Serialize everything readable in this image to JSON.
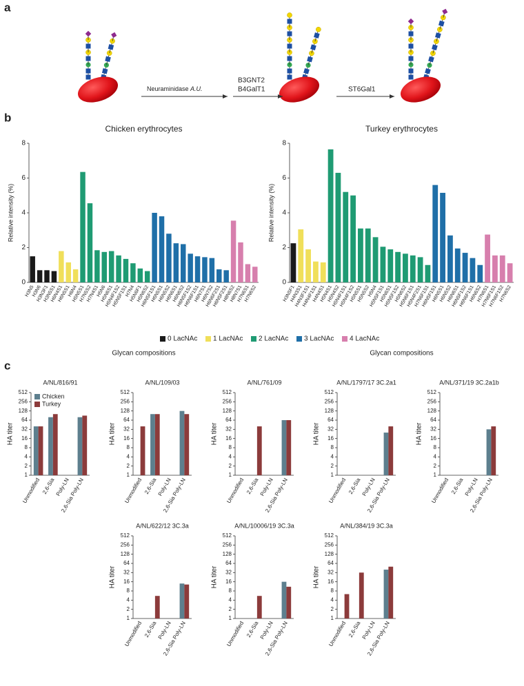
{
  "panel_labels": [
    "a",
    "b",
    "c"
  ],
  "diagram": {
    "steps": [
      {
        "text": "Neuraminidase",
        "italic": "A.U."
      },
      {
        "lines": [
          "B3GNT2",
          "B4GalT1"
        ]
      },
      {
        "lines": [
          "ST6Gal1"
        ]
      }
    ]
  },
  "lacnac_legend": [
    {
      "name": "0 LacNAc",
      "color": "#1a1a1a"
    },
    {
      "name": "1 LacNAc",
      "color": "#f0df5a"
    },
    {
      "name": "2 LacNAc",
      "color": "#1f9b73"
    },
    {
      "name": "3 LacNAc",
      "color": "#1f6fa8"
    },
    {
      "name": "4 LacNAc",
      "color": "#d77fad"
    }
  ],
  "chart_data": [
    {
      "type": "bar",
      "title": "Chicken erythrocytes",
      "y_label": "Relative intensity (%)",
      "x_label": "Glycan compositions",
      "ylim": [
        0,
        8
      ],
      "yticks": [
        0,
        2,
        4,
        6,
        8
      ],
      "series": [
        {
          "categories": [
            "H3N5",
            "H3N6",
            "H3N3F1",
            "H3N5S1"
          ],
          "values": [
            1.5,
            0.7,
            0.7,
            0.65
          ]
        },
        {
          "categories": [
            "H6N4S1",
            "H6N5S1",
            "H6N4"
          ],
          "values": [
            1.8,
            1.15,
            0.75
          ]
        },
        {
          "categories": [
            "H5N5S1",
            "H7N5S2",
            "H7N4S1",
            "H5N6",
            "H5N6S1",
            "H5N4F1S2",
            "H5N5F1S1",
            "H7N4",
            "H5N6F1",
            "H5N6S2"
          ],
          "values": [
            6.35,
            4.55,
            1.85,
            1.75,
            1.8,
            1.55,
            1.35,
            1.1,
            0.8,
            0.65
          ]
        },
        {
          "categories": [
            "H6N5F1S1",
            "H6N5S1",
            "H6N5S2",
            "H6N6S1",
            "H6N6S2",
            "H6N5F1S2",
            "H6N6F1S1",
            "H6N7S1",
            "H6N7S2",
            "H6N6F2S1",
            "H6N5F2S1"
          ],
          "values": [
            4.0,
            3.8,
            2.8,
            2.25,
            2.2,
            1.65,
            1.5,
            1.45,
            1.4,
            0.75,
            0.7
          ]
        },
        {
          "categories": [
            "H8N6S2",
            "H8N7S1",
            "H7N6S1",
            "H7N6S2"
          ],
          "values": [
            3.55,
            2.3,
            1.05,
            0.9
          ]
        }
      ]
    },
    {
      "type": "bar",
      "title": "Turkey erythrocytes",
      "y_label": "Relative intensity (%)",
      "x_label": "Glycan compositions",
      "ylim": [
        0,
        8
      ],
      "yticks": [
        0,
        2,
        4,
        6,
        8
      ],
      "series": [
        {
          "categories": [
            "H3N5F1"
          ],
          "values": [
            2.25
          ]
        },
        {
          "categories": [
            "H4N3S1",
            "H4N3F1S1",
            "H4N4F1S1",
            "H4N4S1"
          ],
          "values": [
            3.05,
            1.9,
            1.2,
            1.15
          ]
        },
        {
          "categories": [
            "H5N4S1",
            "H5N4S2",
            "H5N4F1S1",
            "H5N4F1S2",
            "H5N5S1",
            "H5N5S2",
            "H5N4",
            "H5N5F1S1",
            "H5N6S1",
            "H5N5F1S2",
            "H5N6S2",
            "H5N6F1S1",
            "H5N4F2S1",
            "H7N6F1S1"
          ],
          "values": [
            7.65,
            6.3,
            5.2,
            5.0,
            3.1,
            3.1,
            2.6,
            2.05,
            1.9,
            1.75,
            1.65,
            1.55,
            1.45,
            1.0
          ]
        },
        {
          "categories": [
            "H6N5F1S1",
            "H6N5S1",
            "H6N5S2",
            "H6N6S1",
            "H6N5F1S2",
            "H6N6F1S1",
            "H6N6S2"
          ],
          "values": [
            5.6,
            5.15,
            2.7,
            1.95,
            1.7,
            1.4,
            1.0
          ]
        },
        {
          "categories": [
            "H7N6S1",
            "H7N6F1S1",
            "H7N6F1S2",
            "H7N6S2"
          ],
          "values": [
            2.75,
            1.55,
            1.55,
            1.1
          ]
        }
      ]
    },
    {
      "type": "bar",
      "title": "A/NL/816/91",
      "y_label": "HA titer",
      "yscale": "log",
      "log_base": 2,
      "ylim": [
        1,
        512
      ],
      "yticks": [
        1,
        2,
        4,
        8,
        16,
        32,
        64,
        128,
        256,
        512
      ],
      "categories": [
        "Unmodified",
        "2,6-Sia",
        "Poly-LN",
        "2,6-Sia Poly-LN"
      ],
      "series": [
        {
          "name": "Chicken",
          "color": "#5d7f8e",
          "values": [
            40,
            80,
            null,
            80
          ]
        },
        {
          "name": "Turkey",
          "color": "#8c3b3b",
          "values": [
            40,
            101,
            null,
            90
          ]
        }
      ]
    },
    {
      "type": "bar",
      "title": "A/NL/109/03",
      "y_label": "HA titer",
      "yscale": "log",
      "log_base": 2,
      "ylim": [
        1,
        512
      ],
      "yticks": [
        1,
        2,
        4,
        8,
        16,
        32,
        64,
        128,
        256,
        512
      ],
      "categories": [
        "Unmodified",
        "2,6-Sia",
        "Poly-LN",
        "2,6-Sia Poly-LN"
      ],
      "series": [
        {
          "color": "#5d7f8e",
          "values": [
            null,
            101,
            null,
            128
          ]
        },
        {
          "color": "#8c3b3b",
          "values": [
            40,
            101,
            null,
            101
          ]
        }
      ]
    },
    {
      "type": "bar",
      "title": "A/NL/761/09",
      "y_label": "HA titer",
      "yscale": "log",
      "log_base": 2,
      "ylim": [
        1,
        512
      ],
      "yticks": [
        1,
        2,
        4,
        8,
        16,
        32,
        64,
        128,
        256,
        512
      ],
      "categories": [
        "Unmodified",
        "2,6-Sia",
        "Poly-LN",
        "2,6-Sia Poly-LN"
      ],
      "series": [
        {
          "color": "#5d7f8e",
          "values": [
            null,
            null,
            null,
            64
          ]
        },
        {
          "color": "#8c3b3b",
          "values": [
            null,
            40,
            null,
            64
          ]
        }
      ]
    },
    {
      "type": "bar",
      "title": "A/NL/1797/17 3C.2a1",
      "y_label": "HA titer",
      "yscale": "log",
      "log_base": 2,
      "ylim": [
        1,
        512
      ],
      "yticks": [
        1,
        2,
        4,
        8,
        16,
        32,
        64,
        128,
        256,
        512
      ],
      "categories": [
        "Unmodified",
        "2,6-Sia",
        "Poly-LN",
        "2,6-Sia Poly-LN"
      ],
      "series": [
        {
          "color": "#5d7f8e",
          "values": [
            null,
            null,
            null,
            25
          ]
        },
        {
          "color": "#8c3b3b",
          "values": [
            null,
            null,
            null,
            40
          ]
        }
      ]
    },
    {
      "type": "bar",
      "title": "A/NL/371/19 3C.2a1b",
      "y_label": "HA titer",
      "yscale": "log",
      "log_base": 2,
      "ylim": [
        1,
        512
      ],
      "yticks": [
        1,
        2,
        4,
        8,
        16,
        32,
        64,
        128,
        256,
        512
      ],
      "categories": [
        "Unmodified",
        "2,6-Sia",
        "Poly-LN",
        "2,6-Sia Poly-LN"
      ],
      "series": [
        {
          "color": "#5d7f8e",
          "values": [
            null,
            null,
            null,
            32
          ]
        },
        {
          "color": "#8c3b3b",
          "values": [
            null,
            null,
            null,
            40
          ]
        }
      ]
    },
    {
      "type": "bar",
      "title": "A/NL/622/12 3C.3a",
      "y_label": "HA titer",
      "yscale": "log",
      "log_base": 2,
      "ylim": [
        1,
        512
      ],
      "yticks": [
        1,
        2,
        4,
        8,
        16,
        32,
        64,
        128,
        256,
        512
      ],
      "categories": [
        "Unmodified",
        "2,6-Sia",
        "Poly-LN",
        "2,6-Sia Poly-LN"
      ],
      "series": [
        {
          "color": "#5d7f8e",
          "values": [
            null,
            null,
            null,
            14
          ]
        },
        {
          "color": "#8c3b3b",
          "values": [
            null,
            5.5,
            null,
            13
          ]
        }
      ]
    },
    {
      "type": "bar",
      "title": "A/NL/10006/19 3C.3a",
      "y_label": "HA titer",
      "yscale": "log",
      "log_base": 2,
      "ylim": [
        1,
        512
      ],
      "yticks": [
        1,
        2,
        4,
        8,
        16,
        32,
        64,
        128,
        256,
        512
      ],
      "categories": [
        "Unmodified",
        "2,6-Sia",
        "Poly-LN",
        "2,6-Sia Poly-LN"
      ],
      "series": [
        {
          "color": "#5d7f8e",
          "values": [
            null,
            null,
            null,
            16
          ]
        },
        {
          "color": "#8c3b3b",
          "values": [
            null,
            5.5,
            null,
            11
          ]
        }
      ]
    },
    {
      "type": "bar",
      "title": "A/NL/384/19 3C.3a",
      "y_label": "HA titer",
      "yscale": "log",
      "log_base": 2,
      "ylim": [
        1,
        512
      ],
      "yticks": [
        1,
        2,
        4,
        8,
        16,
        32,
        64,
        128,
        256,
        512
      ],
      "categories": [
        "Unmodified",
        "2,6-Sia",
        "Poly-LN",
        "2,6-Sia Poly-LN"
      ],
      "series": [
        {
          "color": "#5d7f8e",
          "values": [
            null,
            null,
            null,
            40
          ]
        },
        {
          "color": "#8c3b3b",
          "values": [
            6.3,
            32,
            null,
            50
          ]
        }
      ]
    }
  ]
}
